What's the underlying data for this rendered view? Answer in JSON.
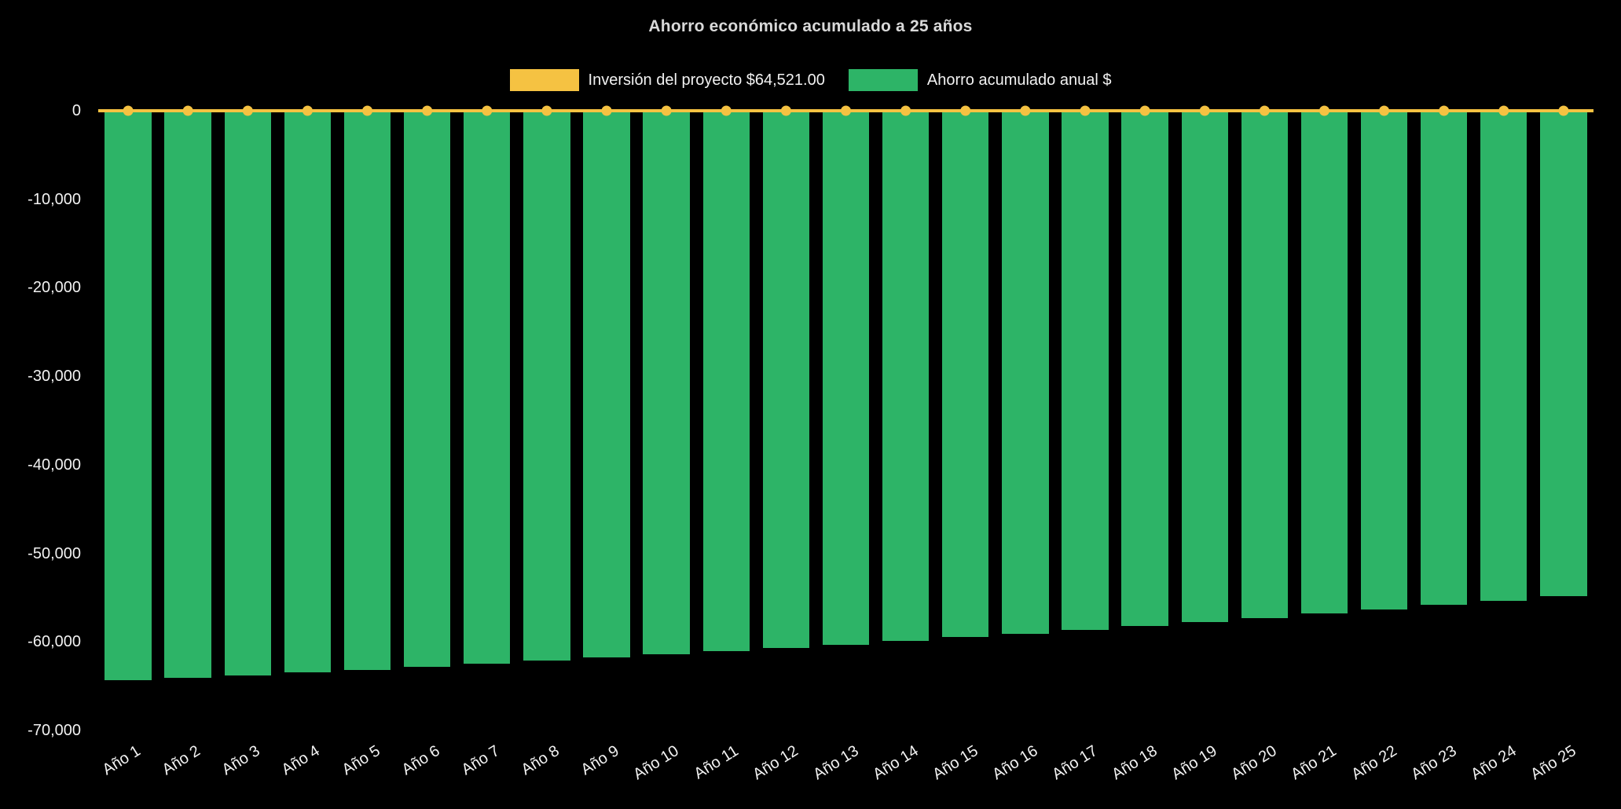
{
  "page": {
    "background": "#000000"
  },
  "chart_data": {
    "type": "bar",
    "title": "Ahorro económico acumulado a 25 años",
    "title_color": "#D9D9D9",
    "text_color": "#F2F2F2",
    "background": "#000000",
    "legend_position": "top",
    "grid": false,
    "x_tick_rotation": -32,
    "ylim": [
      -70000,
      0
    ],
    "yticks": [
      {
        "value": 0,
        "label": "0"
      },
      {
        "value": -10000,
        "label": "-10,000"
      },
      {
        "value": -20000,
        "label": "-20,000"
      },
      {
        "value": -30000,
        "label": "-30,000"
      },
      {
        "value": -40000,
        "label": "-40,000"
      },
      {
        "value": -50000,
        "label": "-50,000"
      },
      {
        "value": -60000,
        "label": "-60,000"
      },
      {
        "value": -70000,
        "label": "-70,000"
      }
    ],
    "categories": [
      "Año 1",
      "Año 2",
      "Año 3",
      "Año 4",
      "Año 5",
      "Año 6",
      "Año 7",
      "Año 8",
      "Año 9",
      "Año 10",
      "Año 11",
      "Año 12",
      "Año 13",
      "Año 14",
      "Año 15",
      "Año 16",
      "Año 17",
      "Año 18",
      "Año 19",
      "Año 20",
      "Año 21",
      "Año 22",
      "Año 23",
      "Año 24",
      "Año 25"
    ],
    "series": [
      {
        "name": "Inversión del proyecto $64,521.00",
        "type": "line",
        "color": "#F5C242",
        "values": [
          0,
          0,
          0,
          0,
          0,
          0,
          0,
          0,
          0,
          0,
          0,
          0,
          0,
          0,
          0,
          0,
          0,
          0,
          0,
          0,
          0,
          0,
          0,
          0,
          0
        ]
      },
      {
        "name": "Ahorro acumulado anual $",
        "type": "bar",
        "color": "#2DB467",
        "values": [
          -64350,
          -64050,
          -63750,
          -63450,
          -63130,
          -62810,
          -62480,
          -62140,
          -61790,
          -61430,
          -61060,
          -60680,
          -60290,
          -59890,
          -59480,
          -59060,
          -58630,
          -58190,
          -57740,
          -57280,
          -56810,
          -56330,
          -55840,
          -55340,
          -54830
        ]
      }
    ]
  }
}
